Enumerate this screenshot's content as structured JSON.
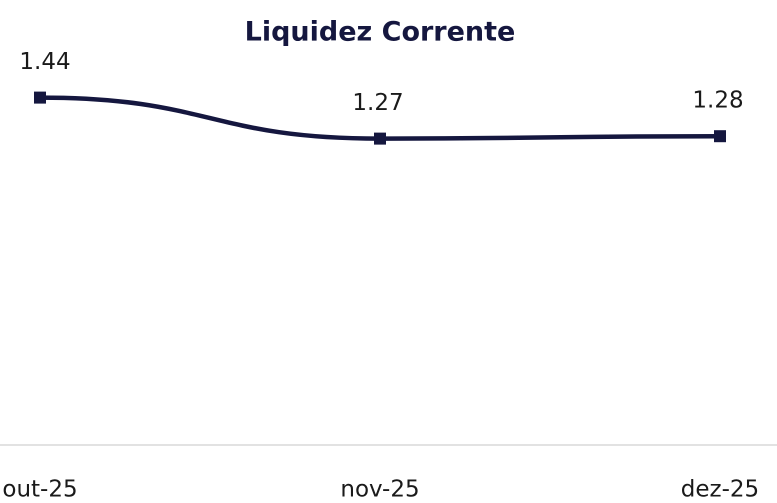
{
  "chart_data": {
    "type": "line",
    "title": "Liquidez Corrente",
    "categories": [
      "out-25",
      "nov-25",
      "dez-25"
    ],
    "series": [
      {
        "name": "Liquidez Corrente",
        "color": "#15173f",
        "values": [
          1.44,
          1.27,
          1.28
        ]
      }
    ],
    "ylim": [
      0,
      1.6
    ]
  }
}
